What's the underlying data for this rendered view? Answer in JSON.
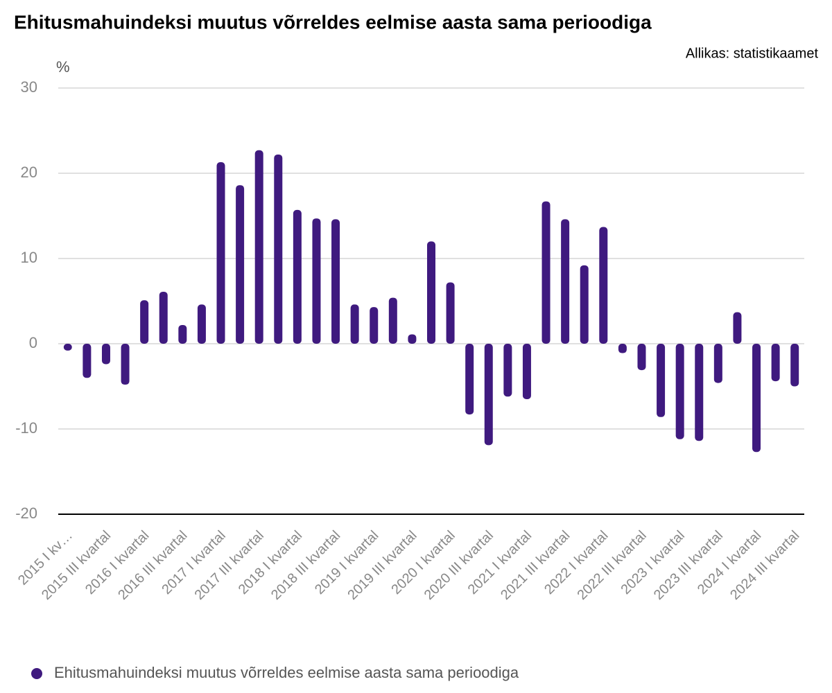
{
  "chart_data": {
    "type": "bar",
    "title": "Ehitusmahuindeksi muutus võrreldes eelmise aasta sama perioodiga",
    "source": "Allikas: statistikaamet",
    "y_axis_label": "%",
    "categories": [
      "2015 I kv…",
      null,
      "2015 III kvartal",
      null,
      "2016 I kvartal",
      null,
      "2016 III kvartal",
      null,
      "2017 I kvartal",
      null,
      "2017 III kvartal",
      null,
      "2018 I kvartal",
      null,
      "2018 III kvartal",
      null,
      "2019 I kvartal",
      null,
      "2019 III kvartal",
      null,
      "2020 I kvartal",
      null,
      "2020 III kvartal",
      null,
      "2021 I kvartal",
      null,
      "2021 III kvartal",
      null,
      "2022 I kvartal",
      null,
      "2022 III kvartal",
      null,
      "2023 I kvartal",
      null,
      "2023 III kvartal",
      null,
      "2024 I kvartal",
      null,
      "2024 III kvartal"
    ],
    "series": [
      {
        "name": "Ehitusmahuindeksi muutus võrreldes eelmise aasta sama perioodiga",
        "color": "#3f1a7f",
        "values": [
          -0.8,
          -4.0,
          -2.4,
          -4.8,
          5.1,
          6.1,
          2.2,
          4.6,
          21.3,
          18.6,
          22.7,
          22.2,
          15.7,
          14.7,
          14.6,
          4.6,
          4.3,
          5.4,
          1.1,
          12.0,
          7.2,
          -8.3,
          -11.9,
          -6.2,
          -6.5,
          16.7,
          14.6,
          9.2,
          13.7,
          -1.1,
          -3.1,
          -8.6,
          -11.2,
          -11.4,
          -4.6,
          3.7,
          -12.7,
          -4.4,
          -5.0
        ]
      }
    ],
    "ylim": [
      -20,
      30
    ],
    "yticks": [
      -20,
      -10,
      0,
      10,
      20,
      30
    ],
    "grid": true,
    "legend": "bottom"
  }
}
